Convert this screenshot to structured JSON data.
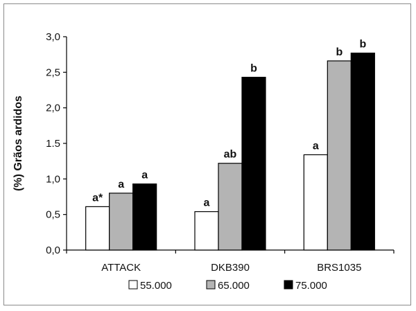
{
  "chart_data": {
    "type": "bar",
    "ylabel": "(%) Grãos ardidos",
    "xlabel": "",
    "categories": [
      "ATTACK",
      "DKB390",
      "BRS1035"
    ],
    "ylim": [
      0,
      3.0
    ],
    "yticks": [
      "0,0",
      "0,5",
      "1,0",
      "1.5",
      "2,0",
      "2,5",
      "3,0"
    ],
    "ytick_values": [
      0,
      0.5,
      1.0,
      1.5,
      2.0,
      2.5,
      3.0
    ],
    "grid": false,
    "legend_position": "bottom",
    "series": [
      {
        "name": "55.000",
        "color": "#ffffff",
        "values": [
          0.61,
          0.54,
          1.34
        ],
        "labels": [
          "a*",
          "a",
          "a"
        ]
      },
      {
        "name": "65.000",
        "color": "#b4b4b4",
        "values": [
          0.8,
          1.22,
          2.66
        ],
        "labels": [
          "a",
          "ab",
          "b"
        ]
      },
      {
        "name": "75.000",
        "color": "#000000",
        "values": [
          0.93,
          2.43,
          2.77
        ],
        "labels": [
          "a",
          "b",
          "b"
        ]
      }
    ]
  }
}
